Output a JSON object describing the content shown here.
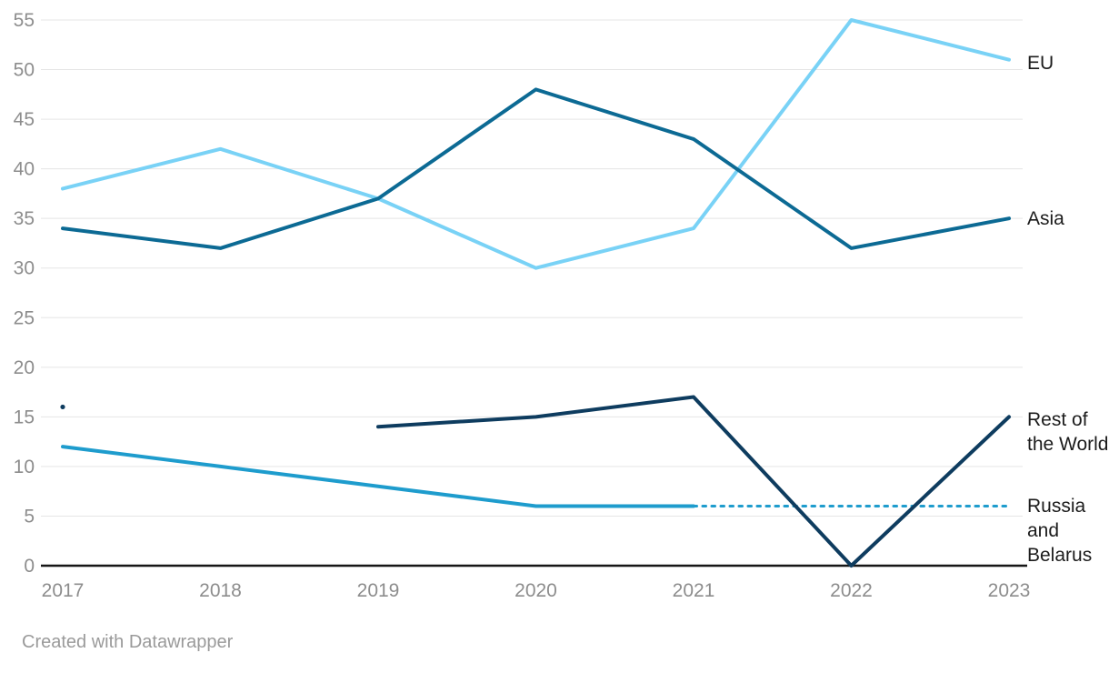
{
  "chart_data": {
    "type": "line",
    "title": "",
    "x": [
      2017,
      2018,
      2019,
      2020,
      2021,
      2022,
      2023
    ],
    "series": [
      {
        "name": "EU",
        "color": "#79D2F6",
        "values": [
          38,
          42,
          37,
          30,
          34,
          55,
          51
        ]
      },
      {
        "name": "Russia and Belarus",
        "color": "#1E9CCD",
        "values": [
          12,
          10,
          8,
          6,
          6,
          6,
          6
        ],
        "dashed_from_x": 2021
      },
      {
        "name": "Rest of the World",
        "color": "#0E3C5F",
        "values": [
          16,
          null,
          14,
          15,
          17,
          0,
          15
        ]
      },
      {
        "name": "Asia",
        "color": "#0C6A94",
        "values": [
          34,
          32,
          37,
          48,
          43,
          32,
          35
        ]
      }
    ],
    "ylim": [
      0,
      55
    ],
    "yticks": [
      0,
      5,
      10,
      15,
      20,
      25,
      30,
      35,
      40,
      45,
      50,
      55
    ],
    "xticks": [
      "2017",
      "2018",
      "2019",
      "2020",
      "2021",
      "2022",
      "2023"
    ],
    "grid": "horizontal",
    "legend_position": "right-of-line-end"
  },
  "legend": {
    "eu": "EU",
    "asia": "Asia",
    "rest_of_world": "Rest of the World",
    "russia_belarus": "Russia and Belarus"
  },
  "axis": {
    "tick_label_color": "#8d8d8d",
    "grid_color": "#e5e5e5",
    "baseline_color": "#161616"
  },
  "footer": {
    "text": "Created with Datawrapper"
  }
}
